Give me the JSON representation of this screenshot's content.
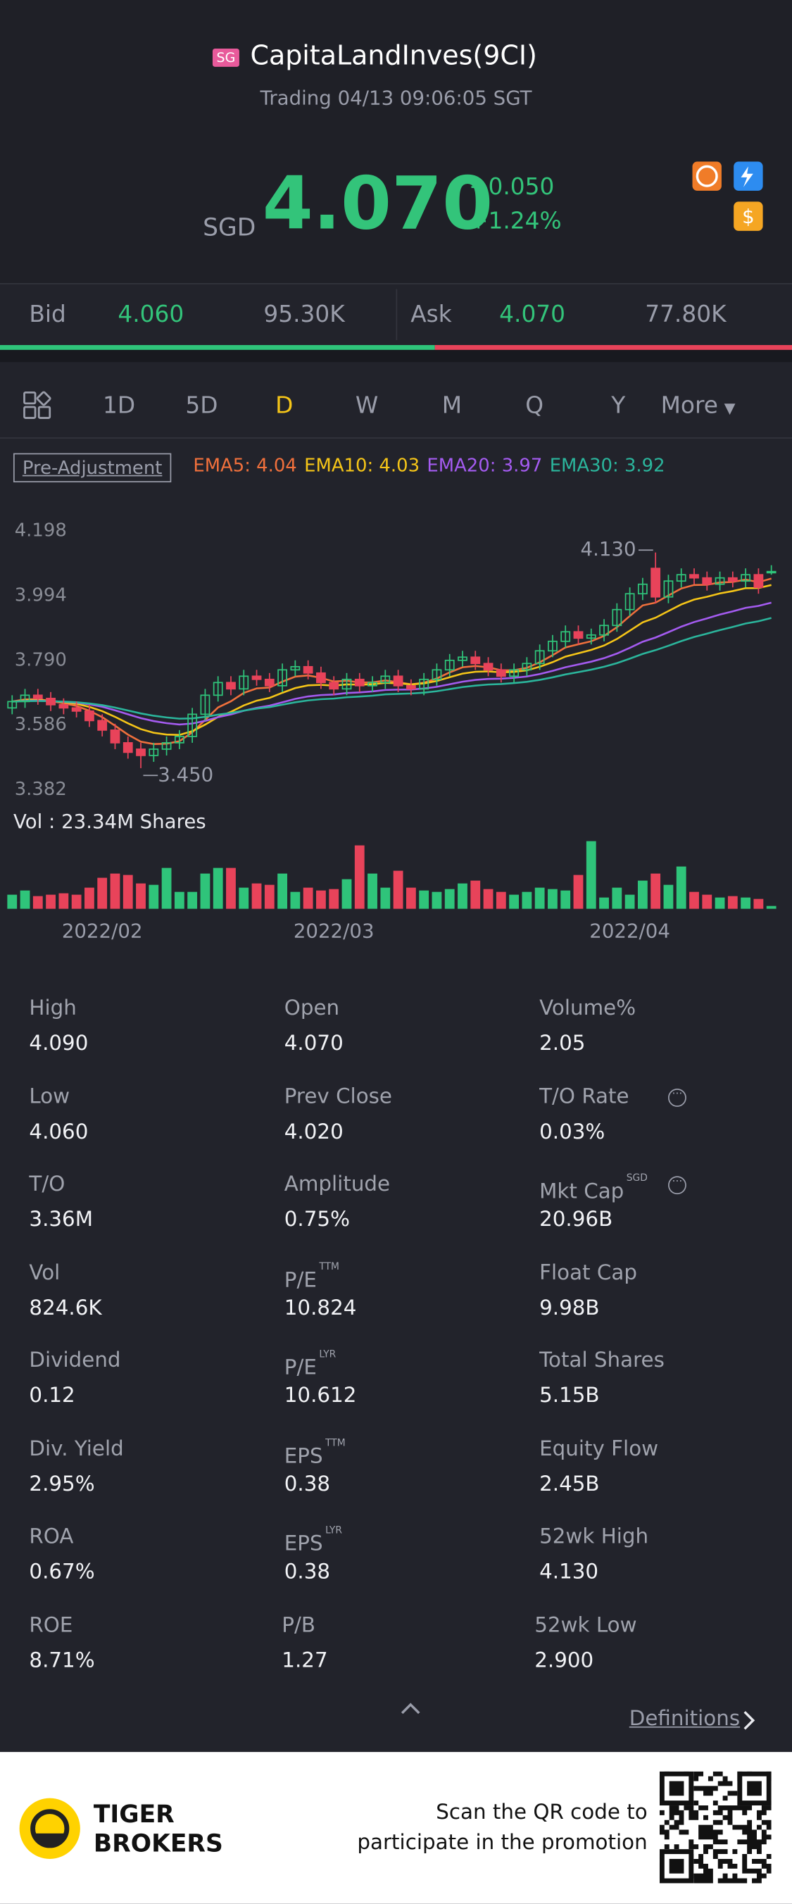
{
  "header": {
    "badge": "SG",
    "title": "CapitaLandInves(9CI)",
    "status": "Trading 04/13 09:06:05 SGT"
  },
  "quote": {
    "currency": "SGD",
    "price": "4.070",
    "change": "+0.050",
    "change_pct": "+1.24%"
  },
  "bid_ask": {
    "bid_label": "Bid",
    "bid": "4.060",
    "bid_size": "95.30K",
    "ask_label": "Ask",
    "ask": "4.070",
    "ask_size": "77.80K"
  },
  "tabs": {
    "items": [
      "1D",
      "5D",
      "D",
      "W",
      "M",
      "Q",
      "Y",
      "More"
    ],
    "active": 2
  },
  "chart_data": {
    "type": "candlestick",
    "adjust": "Pre-Adjustment",
    "ema": [
      {
        "label": "EMA5: 4.04",
        "period": 5,
        "color": "#f0703c"
      },
      {
        "label": "EMA10: 4.03",
        "period": 10,
        "color": "#f5c518"
      },
      {
        "label": "EMA20: 3.97",
        "period": 20,
        "color": "#a45bf0"
      },
      {
        "label": "EMA30: 3.92",
        "period": 30,
        "color": "#2bb59c"
      }
    ],
    "categories": [
      null,
      null,
      null,
      null,
      null,
      null,
      null,
      "2022/02",
      null,
      null,
      null,
      null,
      null,
      null,
      null,
      null,
      null,
      null,
      null,
      null,
      null,
      null,
      null,
      null,
      null,
      "2022/03",
      null,
      null,
      null,
      null,
      null,
      null,
      null,
      null,
      null,
      null,
      null,
      null,
      null,
      null,
      null,
      null,
      null,
      null,
      null,
      null,
      null,
      null,
      "2022/04",
      null,
      null,
      null,
      null,
      null,
      null,
      null,
      null,
      null,
      null,
      null
    ],
    "open": [
      3.64,
      3.66,
      3.68,
      3.67,
      3.65,
      3.64,
      3.63,
      3.6,
      3.57,
      3.53,
      3.51,
      3.49,
      3.51,
      3.53,
      3.55,
      3.62,
      3.68,
      3.72,
      3.7,
      3.74,
      3.73,
      3.71,
      3.76,
      3.77,
      3.75,
      3.72,
      3.7,
      3.73,
      3.71,
      3.72,
      3.74,
      3.71,
      3.7,
      3.73,
      3.76,
      3.79,
      3.8,
      3.78,
      3.76,
      3.74,
      3.76,
      3.78,
      3.82,
      3.85,
      3.88,
      3.86,
      3.87,
      3.9,
      3.95,
      4.0,
      4.08,
      3.99,
      4.04,
      4.06,
      4.05,
      4.03,
      4.05,
      4.04,
      4.06,
      4.07
    ],
    "high": [
      3.68,
      3.7,
      3.7,
      3.69,
      3.67,
      3.66,
      3.65,
      3.62,
      3.59,
      3.55,
      3.53,
      3.53,
      3.55,
      3.57,
      3.64,
      3.7,
      3.74,
      3.74,
      3.76,
      3.76,
      3.75,
      3.78,
      3.79,
      3.79,
      3.77,
      3.74,
      3.75,
      3.75,
      3.74,
      3.76,
      3.76,
      3.73,
      3.75,
      3.78,
      3.81,
      3.82,
      3.82,
      3.8,
      3.78,
      3.78,
      3.8,
      3.84,
      3.87,
      3.9,
      3.9,
      3.89,
      3.92,
      3.97,
      4.02,
      4.05,
      4.13,
      4.06,
      4.08,
      4.08,
      4.07,
      4.07,
      4.07,
      4.08,
      4.08,
      4.09
    ],
    "low": [
      3.62,
      3.64,
      3.65,
      3.63,
      3.62,
      3.61,
      3.58,
      3.55,
      3.51,
      3.48,
      3.45,
      3.47,
      3.49,
      3.51,
      3.53,
      3.6,
      3.66,
      3.68,
      3.68,
      3.71,
      3.69,
      3.69,
      3.74,
      3.73,
      3.7,
      3.68,
      3.68,
      3.69,
      3.69,
      3.7,
      3.69,
      3.68,
      3.68,
      3.71,
      3.74,
      3.77,
      3.76,
      3.74,
      3.72,
      3.72,
      3.74,
      3.76,
      3.8,
      3.83,
      3.84,
      3.84,
      3.85,
      3.88,
      3.93,
      3.98,
      3.97,
      3.97,
      4.02,
      4.03,
      4.01,
      4.01,
      4.02,
      4.02,
      4.0,
      4.06
    ],
    "close": [
      3.66,
      3.68,
      3.67,
      3.65,
      3.64,
      3.63,
      3.6,
      3.57,
      3.53,
      3.5,
      3.49,
      3.51,
      3.53,
      3.55,
      3.62,
      3.68,
      3.72,
      3.7,
      3.74,
      3.73,
      3.71,
      3.76,
      3.77,
      3.75,
      3.72,
      3.7,
      3.73,
      3.71,
      3.72,
      3.74,
      3.71,
      3.7,
      3.73,
      3.76,
      3.79,
      3.8,
      3.78,
      3.76,
      3.74,
      3.76,
      3.78,
      3.82,
      3.85,
      3.88,
      3.86,
      3.87,
      3.9,
      3.95,
      4.0,
      4.03,
      3.99,
      4.04,
      4.06,
      4.05,
      4.03,
      4.05,
      4.04,
      4.06,
      4.02,
      4.07
    ],
    "ylim": [
      3.382,
      4.198
    ],
    "yticks": [
      4.198,
      3.994,
      {
        "value": 3.79,
        "label": "3.790"
      },
      3.586,
      3.382
    ],
    "annotations": [
      {
        "index": 50,
        "label": "4.130"
      },
      {
        "index": 10,
        "label": "3.450"
      }
    ],
    "up_color": "#2fc47a",
    "down_color": "#e8435a",
    "volume": {
      "label": "Vol  : 23.34M Shares",
      "values": [
        10,
        13,
        9,
        10,
        11,
        10,
        15,
        22,
        25,
        24,
        18,
        17,
        29,
        12,
        12,
        25,
        29,
        29,
        15,
        18,
        17,
        25,
        12,
        15,
        13,
        14,
        21,
        45,
        25,
        15,
        27,
        15,
        13,
        12,
        14,
        18,
        20,
        14,
        12,
        10,
        12,
        15,
        14,
        13,
        24,
        48,
        8,
        15,
        10,
        20,
        25,
        17,
        30,
        12,
        10,
        8,
        9,
        8,
        7,
        2
      ],
      "ylim": [
        0,
        50
      ]
    }
  },
  "stats": [
    [
      {
        "label": "High",
        "value": "4.090"
      },
      {
        "label": "Open",
        "value": "4.070"
      },
      {
        "label": "Volume%",
        "value": "2.05"
      }
    ],
    [
      {
        "label": "Low",
        "value": "4.060"
      },
      {
        "label": "Prev Close",
        "value": "4.020"
      },
      {
        "label": "T/O Rate",
        "value": "0.03%",
        "info": true
      }
    ],
    [
      {
        "label": "T/O",
        "value": "3.36M"
      },
      {
        "label": "Amplitude",
        "value": "0.75%"
      },
      {
        "label": "Mkt Cap",
        "sup": "SGD",
        "value": "20.96B",
        "info": true
      }
    ],
    [
      {
        "label": "Vol",
        "value": "824.6K"
      },
      {
        "label": "P/E",
        "sup": "TTM",
        "value": "10.824"
      },
      {
        "label": "Float Cap",
        "value": "9.98B"
      }
    ],
    [
      {
        "label": "Dividend",
        "value": "0.12"
      },
      {
        "label": "P/E",
        "sup": "LYR",
        "value": "10.612"
      },
      {
        "label": "Total Shares",
        "value": "5.15B"
      }
    ],
    [
      {
        "label": "Div. Yield",
        "value": "2.95%"
      },
      {
        "label": "EPS",
        "sup": "TTM",
        "value": "0.38"
      },
      {
        "label": "Equity Flow",
        "value": "2.45B"
      }
    ],
    [
      {
        "label": "ROA",
        "value": "0.67%"
      },
      {
        "label": "EPS",
        "sup": "LYR",
        "value": "0.38"
      },
      {
        "label": "52wk High",
        "value": "4.130"
      }
    ],
    [
      {
        "label": "ROE",
        "value": "8.71%"
      },
      {
        "label": "P/B",
        "value": "1.27"
      },
      {
        "label": "52wk Low",
        "value": "2.900"
      }
    ]
  ],
  "definitions": "Definitions",
  "footer": {
    "brand_line1": "TIGER",
    "brand_line2": "BROKERS",
    "promo_line1": "Scan the QR code to",
    "promo_line2": "participate in the promotion"
  }
}
